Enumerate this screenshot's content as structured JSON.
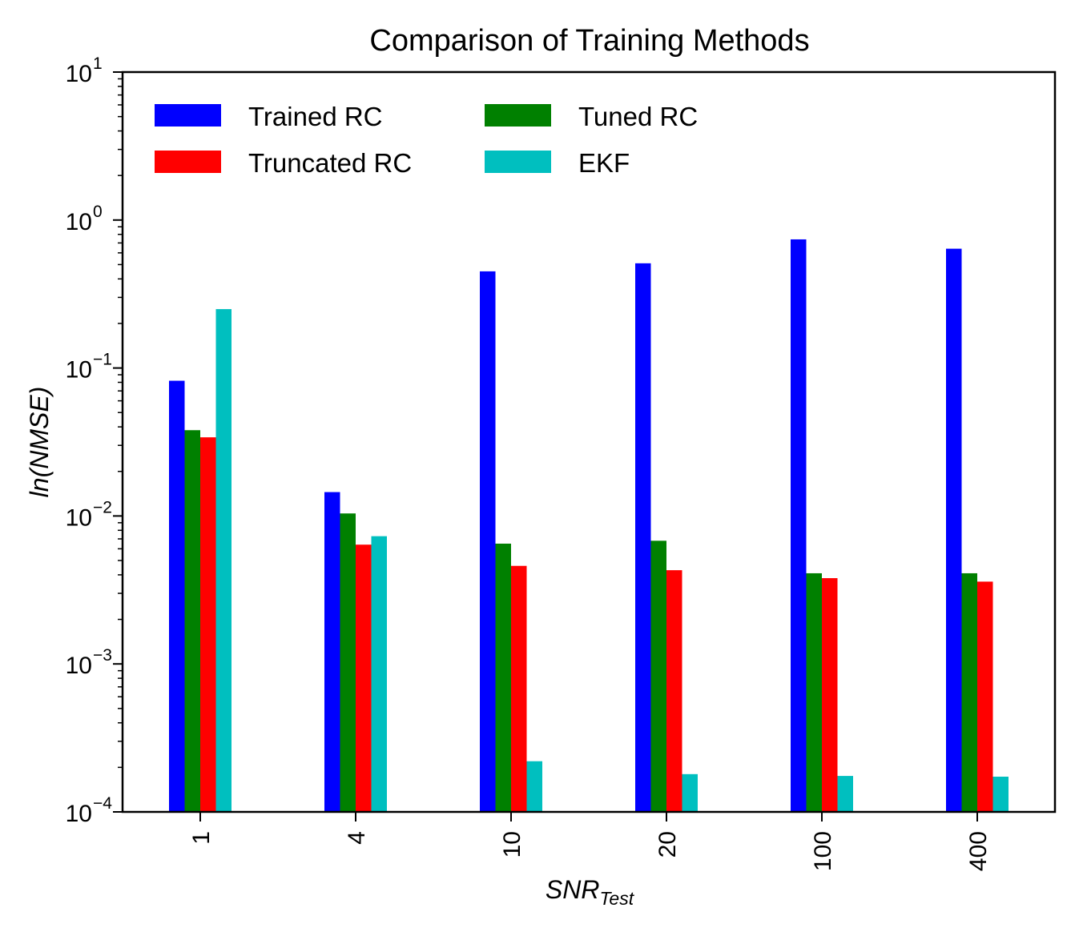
{
  "chart_data": {
    "type": "bar",
    "title": "Comparison of Training Methods",
    "xlabel": "SNR",
    "xlabel_sub": "Test",
    "ylabel": "ln(NMSE)",
    "yscale": "log",
    "ylim": [
      0.0001,
      10
    ],
    "ytick_base": "10",
    "ytick_exponents": [
      "1",
      "0",
      "−1",
      "−2",
      "−3",
      "−4"
    ],
    "categories": [
      "1",
      "4",
      "10",
      "20",
      "100",
      "400"
    ],
    "legend_position": "top-left",
    "legend_columns": 2,
    "grid": false,
    "series": [
      {
        "name": "Trained RC",
        "color": "#0000ff",
        "values": [
          0.082,
          0.0145,
          0.45,
          0.51,
          0.74,
          0.64
        ]
      },
      {
        "name": "Tuned RC",
        "color": "#008000",
        "values": [
          0.038,
          0.0104,
          0.0065,
          0.0068,
          0.0041,
          0.0041
        ]
      },
      {
        "name": "Truncated RC",
        "color": "#ff0000",
        "values": [
          0.034,
          0.0064,
          0.0046,
          0.0043,
          0.0038,
          0.0036
        ]
      },
      {
        "name": "EKF",
        "color": "#00bfbf",
        "values": [
          0.25,
          0.0073,
          0.00022,
          0.00018,
          0.000175,
          0.000173
        ]
      }
    ]
  }
}
